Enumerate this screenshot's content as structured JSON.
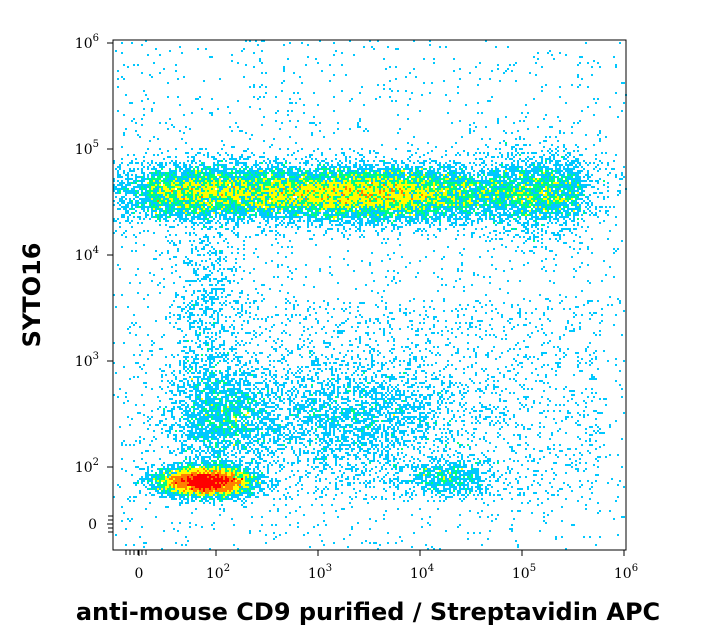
{
  "chart_data": {
    "type": "scatter",
    "subtype": "flow-cytometry-density-dot-plot",
    "xlabel": "anti-mouse CD9 purified / Streptavidin APC",
    "ylabel": "SYTO16",
    "x_scale": "biexponential",
    "y_scale": "biexponential",
    "x_ticks": [
      {
        "value": 0,
        "base": "0",
        "exp": ""
      },
      {
        "value": 100,
        "base": "10",
        "exp": "2"
      },
      {
        "value": 1000,
        "base": "10",
        "exp": "3"
      },
      {
        "value": 10000,
        "base": "10",
        "exp": "4"
      },
      {
        "value": 100000,
        "base": "10",
        "exp": "5"
      },
      {
        "value": 1000000,
        "base": "10",
        "exp": "6"
      }
    ],
    "y_ticks": [
      {
        "value": 0,
        "base": "0",
        "exp": ""
      },
      {
        "value": 100,
        "base": "10",
        "exp": "2"
      },
      {
        "value": 1000,
        "base": "10",
        "exp": "3"
      },
      {
        "value": 10000,
        "base": "10",
        "exp": "4"
      },
      {
        "value": 100000,
        "base": "10",
        "exp": "5"
      },
      {
        "value": 1000000,
        "base": "10",
        "exp": "6"
      }
    ],
    "xlim": [
      -20,
      1000000
    ],
    "ylim": [
      -20,
      1000000
    ],
    "color_map": [
      "#0000ff",
      "#00c8ff",
      "#00ff80",
      "#ffff00",
      "#ff8000",
      "#ff0000"
    ],
    "populations": [
      {
        "x": 55,
        "y": 30,
        "density": "very high"
      },
      {
        "x": 120,
        "y": 300,
        "density": "medium"
      },
      {
        "x": 2500,
        "y": 300,
        "density": "medium"
      },
      {
        "x": 60,
        "y": 2500,
        "density": "low-medium"
      },
      {
        "x": 60,
        "y": 40000,
        "density": "high"
      },
      {
        "x": 3000,
        "y": 38000,
        "density": "very high"
      },
      {
        "x": 150000,
        "y": 40000,
        "density": "medium"
      },
      {
        "x": 20000,
        "y": 45,
        "density": "medium"
      }
    ],
    "grid": false,
    "legend": "none"
  }
}
